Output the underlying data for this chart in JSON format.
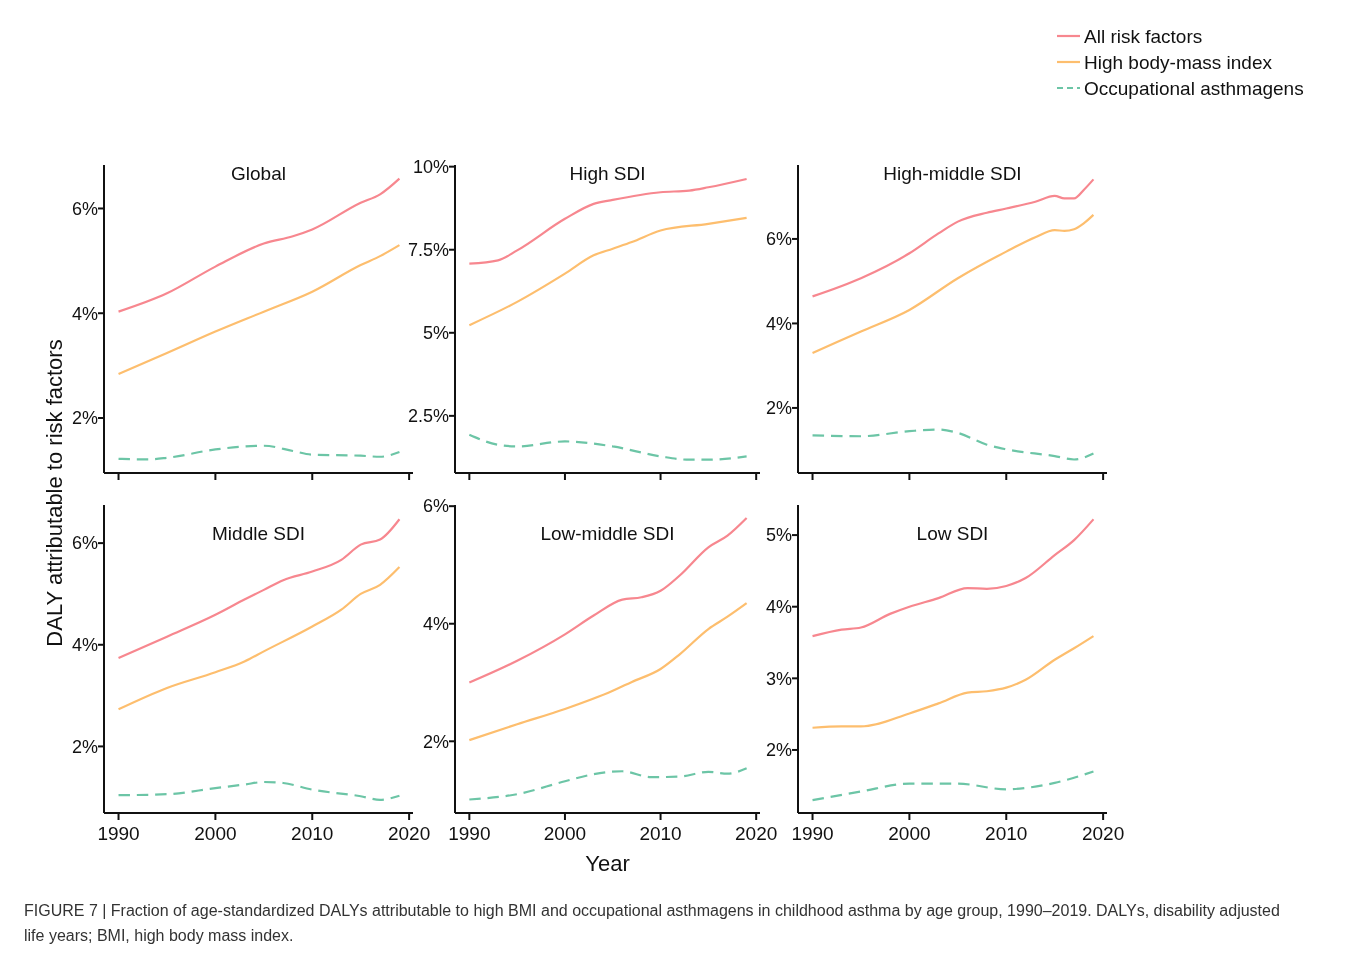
{
  "chart_data": [
    {
      "type": "line",
      "title": "Global",
      "ylabel": "DALY attributable to risk factors",
      "annotations": [
        "FIGURE 7 | Fraction of age-standardized DALYs attributable to high BMI and occupational asthmagens in childhood asthma by age group, 1990–2019. DALYs, disability adjusted life years; BMI, high body mass index."
      ],
      "xlim": [
        1988.5,
        2020.4
      ],
      "xticks": [
        1990,
        2000,
        2010,
        2020
      ],
      "ylim": [
        0.95,
        6.83
      ],
      "yticks": [
        {
          "value": 2,
          "label": "2%"
        },
        {
          "value": 4,
          "label": "4%"
        },
        {
          "value": 6,
          "label": "6%"
        }
      ],
      "tick_labels": "y",
      "grid": false,
      "series": [
        {
          "color": "#f7878f",
          "x": [
            1990,
            1995,
            2000,
            2005,
            2008,
            2010,
            2015,
            2017,
            2019
          ],
          "values": [
            4.03,
            4.38,
            4.89,
            5.33,
            5.47,
            5.6,
            6.11,
            6.27,
            6.57
          ]
        },
        {
          "color": "#fdbe6e",
          "x": [
            1990,
            1995,
            2000,
            2005,
            2010,
            2015,
            2017,
            2019
          ],
          "values": [
            2.84,
            3.24,
            3.65,
            4.03,
            4.41,
            4.92,
            5.09,
            5.3
          ]
        },
        {
          "color": "#6cc5a6",
          "line_style": "dashed",
          "x": [
            1990,
            1993,
            1995,
            2000,
            2005,
            2008,
            2010,
            2015,
            2017,
            2019
          ],
          "values": [
            1.22,
            1.21,
            1.24,
            1.4,
            1.47,
            1.37,
            1.3,
            1.28,
            1.26,
            1.35
          ]
        }
      ]
    },
    {
      "type": "line",
      "title": "High SDI",
      "xlim": [
        1988.5,
        2020.4
      ],
      "xticks": [
        1990,
        2000,
        2010,
        2020
      ],
      "ylim": [
        0.78,
        10.05
      ],
      "yticks": [
        {
          "value": 2.5,
          "label": "2.5%"
        },
        {
          "value": 5,
          "label": "5%"
        },
        {
          "value": 7.5,
          "label": "7.5%"
        },
        {
          "value": 10,
          "label": "10%"
        }
      ],
      "tick_labels": "y",
      "grid": false,
      "series": [
        {
          "color": "#f7878f",
          "x": [
            1990,
            1993,
            1995,
            2000,
            2003,
            2005,
            2010,
            2013,
            2015,
            2019
          ],
          "values": [
            7.08,
            7.18,
            7.48,
            8.43,
            8.88,
            9.0,
            9.23,
            9.28,
            9.38,
            9.63
          ]
        },
        {
          "color": "#fdbe6e",
          "x": [
            1990,
            1995,
            2000,
            2003,
            2005,
            2007,
            2010,
            2015,
            2019
          ],
          "values": [
            5.23,
            5.93,
            6.78,
            7.33,
            7.53,
            7.73,
            8.08,
            8.28,
            8.46
          ]
        },
        {
          "color": "#6cc5a6",
          "line_style": "dashed",
          "x": [
            1990,
            1993,
            1995,
            2000,
            2005,
            2010,
            2013,
            2015,
            2019
          ],
          "values": [
            1.93,
            1.63,
            1.58,
            1.73,
            1.58,
            1.28,
            1.18,
            1.18,
            1.28
          ]
        }
      ]
    },
    {
      "type": "line",
      "title": "High-middle SDI",
      "legend": "top right",
      "xlim": [
        1988.5,
        2020.4
      ],
      "xticks": [
        1990,
        2000,
        2010,
        2020
      ],
      "ylim": [
        0.46,
        7.75
      ],
      "yticks": [
        {
          "value": 2,
          "label": "2%"
        },
        {
          "value": 4,
          "label": "4%"
        },
        {
          "value": 6,
          "label": "6%"
        }
      ],
      "tick_labels": "y",
      "grid": false,
      "series": [
        {
          "name": "All risk factors",
          "color": "#f7878f",
          "x": [
            1990,
            1995,
            2000,
            2003,
            2005,
            2008,
            2010,
            2013,
            2015,
            2016,
            2017,
            2018,
            2019
          ],
          "values": [
            4.64,
            5.07,
            5.66,
            6.13,
            6.41,
            6.62,
            6.72,
            6.88,
            7.02,
            6.96,
            6.96,
            7.16,
            7.41
          ]
        },
        {
          "name": "High body-mass index",
          "color": "#fdbe6e",
          "x": [
            1990,
            1995,
            2000,
            2005,
            2010,
            2013,
            2015,
            2016,
            2017,
            2018,
            2019
          ],
          "values": [
            3.3,
            3.81,
            4.32,
            5.07,
            5.7,
            6.04,
            6.21,
            6.19,
            6.23,
            6.37,
            6.57
          ]
        },
        {
          "name": "Occupational asthmagens",
          "color": "#6cc5a6",
          "line_style": "dashed",
          "x": [
            1990,
            1995,
            2000,
            2003,
            2005,
            2008,
            2010,
            2015,
            2017,
            2019
          ],
          "values": [
            1.35,
            1.33,
            1.45,
            1.49,
            1.41,
            1.13,
            1.02,
            0.86,
            0.78,
            0.92
          ]
        }
      ]
    },
    {
      "type": "line",
      "title": "Middle SDI",
      "xlim": [
        1988.5,
        2020.4
      ],
      "xticks": [
        1990,
        2000,
        2010,
        2020
      ],
      "ylim": [
        0.69,
        6.75
      ],
      "yticks": [
        {
          "value": 2,
          "label": "2%"
        },
        {
          "value": 4,
          "label": "4%"
        },
        {
          "value": 6,
          "label": "6%"
        }
      ],
      "grid": false,
      "series": [
        {
          "color": "#f7878f",
          "x": [
            1990,
            1995,
            2000,
            2003,
            2005,
            2007,
            2010,
            2013,
            2015,
            2017,
            2019
          ],
          "values": [
            3.74,
            4.16,
            4.59,
            4.89,
            5.08,
            5.27,
            5.44,
            5.67,
            5.97,
            6.07,
            6.47
          ]
        },
        {
          "color": "#fdbe6e",
          "x": [
            1990,
            1995,
            2000,
            2003,
            2005,
            2010,
            2013,
            2015,
            2017,
            2019
          ],
          "values": [
            2.73,
            3.15,
            3.46,
            3.67,
            3.87,
            4.36,
            4.69,
            5.0,
            5.18,
            5.53
          ]
        },
        {
          "color": "#6cc5a6",
          "line_style": "dashed",
          "x": [
            1990,
            1995,
            2000,
            2003,
            2005,
            2007,
            2010,
            2015,
            2017,
            2019
          ],
          "values": [
            1.04,
            1.06,
            1.18,
            1.25,
            1.3,
            1.28,
            1.15,
            1.02,
            0.95,
            1.03
          ]
        }
      ]
    },
    {
      "type": "line",
      "title": "Low-middle SDI",
      "xlabel": "Year",
      "xlim": [
        1988.5,
        2020.4
      ],
      "xticks": [
        1990,
        2000,
        2010,
        2020
      ],
      "ylim": [
        0.78,
        6.02
      ],
      "yticks": [
        {
          "value": 2,
          "label": "2%"
        },
        {
          "value": 4,
          "label": "4%"
        },
        {
          "value": 6,
          "label": "6%"
        }
      ],
      "grid": false,
      "series": [
        {
          "color": "#f7878f",
          "x": [
            1990,
            1995,
            2000,
            2003,
            2006,
            2008,
            2010,
            2012,
            2015,
            2017,
            2019
          ],
          "values": [
            3.0,
            3.37,
            3.82,
            4.14,
            4.41,
            4.45,
            4.56,
            4.82,
            5.3,
            5.5,
            5.8
          ]
        },
        {
          "color": "#fdbe6e",
          "x": [
            1990,
            1995,
            2000,
            2005,
            2007,
            2010,
            2012,
            2015,
            2017,
            2019
          ],
          "values": [
            2.02,
            2.29,
            2.55,
            2.86,
            3.01,
            3.23,
            3.48,
            3.91,
            4.12,
            4.35
          ]
        },
        {
          "color": "#6cc5a6",
          "line_style": "dashed",
          "x": [
            1990,
            1995,
            2000,
            2003,
            2006,
            2009,
            2012,
            2015,
            2017,
            2019
          ],
          "values": [
            1.01,
            1.1,
            1.32,
            1.44,
            1.49,
            1.39,
            1.4,
            1.48,
            1.45,
            1.54
          ]
        }
      ]
    },
    {
      "type": "line",
      "title": "Low SDI",
      "xlim": [
        1988.5,
        2020.4
      ],
      "xticks": [
        1990,
        2000,
        2010,
        2020
      ],
      "ylim": [
        1.12,
        5.42
      ],
      "yticks": [
        {
          "value": 2,
          "label": "2%"
        },
        {
          "value": 3,
          "label": "3%"
        },
        {
          "value": 4,
          "label": "4%"
        },
        {
          "value": 5,
          "label": "5%"
        }
      ],
      "grid": false,
      "series": [
        {
          "color": "#f7878f",
          "x": [
            1990,
            1993,
            1995,
            1998,
            2000,
            2003,
            2006,
            2008,
            2010,
            2012,
            2015,
            2017,
            2019
          ],
          "values": [
            3.59,
            3.68,
            3.71,
            3.9,
            4.0,
            4.12,
            4.26,
            4.25,
            4.29,
            4.4,
            4.72,
            4.93,
            5.22
          ]
        },
        {
          "color": "#fdbe6e",
          "x": [
            1990,
            1993,
            1995,
            2000,
            2003,
            2006,
            2008,
            2010,
            2012,
            2015,
            2017,
            2019
          ],
          "values": [
            2.31,
            2.33,
            2.33,
            2.51,
            2.65,
            2.8,
            2.82,
            2.87,
            2.98,
            3.26,
            3.42,
            3.59
          ]
        },
        {
          "color": "#6cc5a6",
          "line_style": "dashed",
          "x": [
            1990,
            1995,
            2000,
            2005,
            2010,
            2012,
            2015,
            2019
          ],
          "values": [
            1.3,
            1.42,
            1.53,
            1.53,
            1.45,
            1.47,
            1.54,
            1.7
          ]
        }
      ]
    }
  ]
}
